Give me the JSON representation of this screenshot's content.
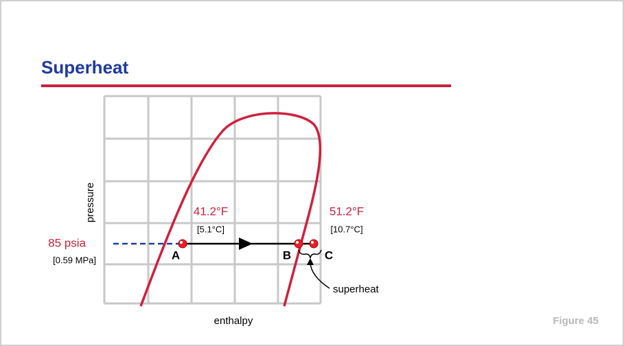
{
  "header": {
    "title": "Superheat"
  },
  "diagram": {
    "y_axis_label": "pressure",
    "x_axis_label": "enthalpy",
    "pressure_label": "85 psia",
    "pressure_metric": "[0.59 MPa]",
    "points": [
      {
        "label": "A"
      },
      {
        "label": "B"
      },
      {
        "label": "C"
      }
    ],
    "temperatures": [
      {
        "fahrenheit": "41.2°F",
        "celsius": "[5.1°C]"
      },
      {
        "fahrenheit": "51.2°F",
        "celsius": "[10.7°C]"
      }
    ],
    "annotation": "superheat"
  },
  "footer": {
    "figure": "Figure 45"
  }
}
